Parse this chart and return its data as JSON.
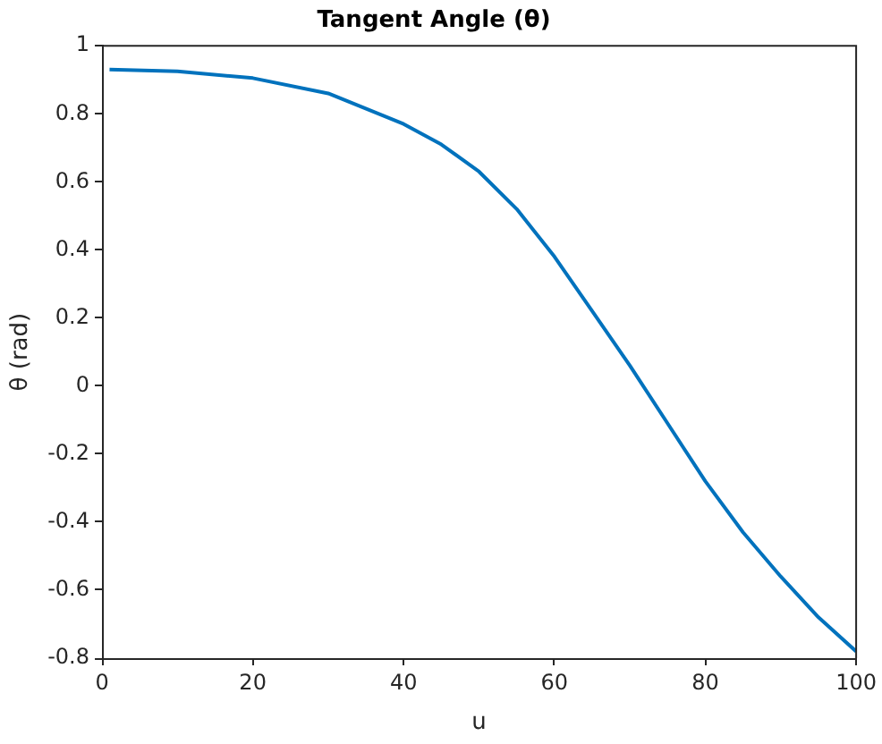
{
  "chart_data": {
    "type": "line",
    "title": "Tangent Angle (θ)",
    "xlabel": "u",
    "ylabel": "θ (rad)",
    "x": [
      1,
      10,
      20,
      30,
      40,
      45,
      50,
      55,
      60,
      65,
      70,
      75,
      80,
      85,
      90,
      95,
      100
    ],
    "series": [
      {
        "color": "#0072bd",
        "values": [
          0.93,
          0.925,
          0.905,
          0.86,
          0.77,
          0.71,
          0.63,
          0.52,
          0.38,
          0.22,
          0.06,
          -0.11,
          -0.28,
          -0.43,
          -0.56,
          -0.68,
          -0.78
        ]
      }
    ],
    "xlim": [
      0,
      100
    ],
    "xticks": [
      0,
      20,
      40,
      60,
      80,
      100
    ],
    "ylim": [
      -0.8,
      1
    ],
    "yticks": [
      -0.8,
      -0.6,
      -0.4,
      -0.2,
      0,
      0.2,
      0.4,
      0.6,
      0.8,
      1
    ],
    "marker": "none",
    "line_style": "solid",
    "legend": false
  }
}
